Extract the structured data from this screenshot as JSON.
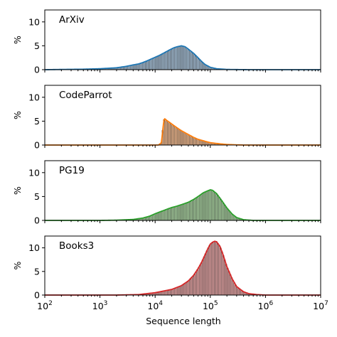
{
  "chart_data": {
    "type": "histogram",
    "xlabel": "Sequence length",
    "ylabel": "%",
    "xscale": "log",
    "xlim": [
      100,
      10000000
    ],
    "ylim": [
      0,
      12.5
    ],
    "x_ticks": [
      {
        "value": 100,
        "base": "10",
        "exp": "2"
      },
      {
        "value": 1000,
        "base": "10",
        "exp": "3"
      },
      {
        "value": 10000,
        "base": "10",
        "exp": "4"
      },
      {
        "value": 100000,
        "base": "10",
        "exp": "5"
      },
      {
        "value": 1000000,
        "base": "10",
        "exp": "6"
      },
      {
        "value": 10000000,
        "base": "10",
        "exp": "7"
      }
    ],
    "y_ticks": [
      0,
      5,
      10
    ],
    "grid": false,
    "panels": [
      {
        "label": "ArXiv",
        "color": "#1f77b4",
        "fill": "#a6c1d9",
        "curve": [
          [
            100,
            0
          ],
          [
            200,
            0.05
          ],
          [
            500,
            0.1
          ],
          [
            1000,
            0.2
          ],
          [
            2000,
            0.4
          ],
          [
            3000,
            0.7
          ],
          [
            4000,
            1.0
          ],
          [
            5000,
            1.2
          ],
          [
            6000,
            1.5
          ],
          [
            7000,
            1.8
          ],
          [
            8000,
            2.1
          ],
          [
            10000,
            2.6
          ],
          [
            12000,
            3.0
          ],
          [
            15000,
            3.6
          ],
          [
            18000,
            4.1
          ],
          [
            22000,
            4.6
          ],
          [
            25000,
            4.8
          ],
          [
            30000,
            5.0
          ],
          [
            35000,
            4.8
          ],
          [
            40000,
            4.3
          ],
          [
            50000,
            3.4
          ],
          [
            60000,
            2.5
          ],
          [
            70000,
            1.7
          ],
          [
            80000,
            1.1
          ],
          [
            100000,
            0.5
          ],
          [
            130000,
            0.2
          ],
          [
            200000,
            0.05
          ],
          [
            500000,
            0
          ]
        ]
      },
      {
        "label": "CodeParrot",
        "color": "#ff7f0e",
        "fill": "#f3b98c",
        "curve": [
          [
            10000,
            0
          ],
          [
            11500,
            0
          ],
          [
            13000,
            0.5
          ],
          [
            14000,
            4.0
          ],
          [
            14500,
            5.3
          ],
          [
            15000,
            5.5
          ],
          [
            16000,
            5.2
          ],
          [
            18000,
            4.8
          ],
          [
            20000,
            4.4
          ],
          [
            25000,
            3.6
          ],
          [
            30000,
            3.0
          ],
          [
            40000,
            2.2
          ],
          [
            50000,
            1.6
          ],
          [
            60000,
            1.2
          ],
          [
            80000,
            0.8
          ],
          [
            100000,
            0.5
          ],
          [
            150000,
            0.25
          ],
          [
            200000,
            0.12
          ],
          [
            300000,
            0.04
          ],
          [
            400000,
            0
          ]
        ]
      },
      {
        "label": "PG19",
        "color": "#2ca02c",
        "fill": "#a9d4a0",
        "curve": [
          [
            100,
            0
          ],
          [
            1000,
            0
          ],
          [
            2000,
            0.05
          ],
          [
            4000,
            0.2
          ],
          [
            6000,
            0.5
          ],
          [
            8000,
            0.9
          ],
          [
            10000,
            1.4
          ],
          [
            13000,
            1.9
          ],
          [
            16000,
            2.3
          ],
          [
            20000,
            2.7
          ],
          [
            25000,
            3.0
          ],
          [
            30000,
            3.3
          ],
          [
            40000,
            3.8
          ],
          [
            50000,
            4.4
          ],
          [
            60000,
            5.0
          ],
          [
            75000,
            5.8
          ],
          [
            90000,
            6.2
          ],
          [
            100000,
            6.4
          ],
          [
            110000,
            6.3
          ],
          [
            130000,
            5.6
          ],
          [
            160000,
            4.2
          ],
          [
            200000,
            2.6
          ],
          [
            250000,
            1.3
          ],
          [
            300000,
            0.6
          ],
          [
            400000,
            0.15
          ],
          [
            600000,
            0
          ]
        ]
      },
      {
        "label": "Books3",
        "color": "#d62728",
        "fill": "#e7a3a3",
        "curve": [
          [
            100,
            0
          ],
          [
            2000,
            0
          ],
          [
            5000,
            0.1
          ],
          [
            10000,
            0.5
          ],
          [
            20000,
            1.2
          ],
          [
            30000,
            2.0
          ],
          [
            40000,
            3.0
          ],
          [
            50000,
            4.2
          ],
          [
            60000,
            5.6
          ],
          [
            70000,
            7.0
          ],
          [
            80000,
            8.5
          ],
          [
            90000,
            9.8
          ],
          [
            100000,
            10.8
          ],
          [
            110000,
            11.2
          ],
          [
            120000,
            11.4
          ],
          [
            130000,
            11.3
          ],
          [
            150000,
            10.3
          ],
          [
            170000,
            8.6
          ],
          [
            200000,
            6.0
          ],
          [
            250000,
            3.4
          ],
          [
            300000,
            1.8
          ],
          [
            400000,
            0.7
          ],
          [
            500000,
            0.3
          ],
          [
            700000,
            0.1
          ],
          [
            1000000,
            0
          ]
        ]
      }
    ]
  }
}
